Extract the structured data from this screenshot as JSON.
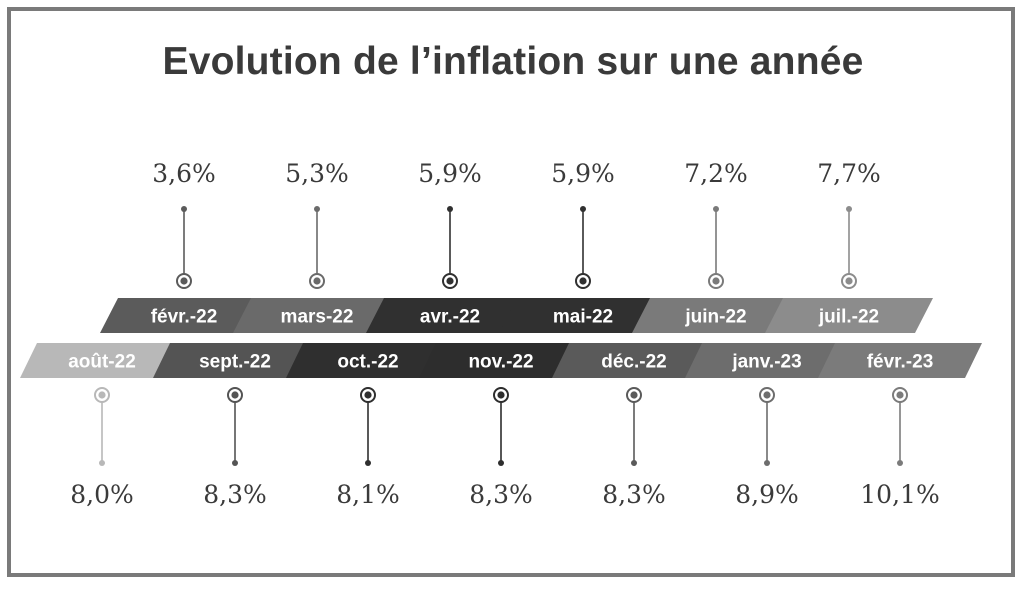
{
  "title": "Evolution de l’inflation sur une année",
  "chart_data": {
    "type": "timeline",
    "title": "Evolution de l’inflation sur une année",
    "unit": "%",
    "categories": [
      "févr.-22",
      "mars-22",
      "avr.-22",
      "mai-22",
      "juin-22",
      "juil.-22",
      "août-22",
      "sept.-22",
      "oct.-22",
      "nov.-22",
      "déc.-22",
      "janv.-23",
      "févr.-23"
    ],
    "values": [
      3.6,
      5.3,
      5.9,
      5.9,
      7.2,
      7.7,
      8.0,
      8.3,
      8.1,
      8.3,
      8.3,
      8.9,
      10.1
    ],
    "value_labels": [
      "3,6%",
      "5,3%",
      "5,9%",
      "5,9%",
      "7,2%",
      "7,7%",
      "8,0%",
      "8,3%",
      "8,1%",
      "8,3%",
      "8,3%",
      "8,9%",
      "10,1%"
    ]
  },
  "colors": {
    "bands": [
      "#5b5b5b",
      "#6a6a6a",
      "#303030",
      "#303030",
      "#7a7a7a",
      "#8c8c8c",
      "#b8b8b8",
      "#545454",
      "#2f2f2f",
      "#2d2d2d",
      "#5a5a5a",
      "#6d6d6d",
      "#7b7b7b"
    ],
    "frame": "#7a7a7a",
    "text": "#3a3a3a"
  }
}
